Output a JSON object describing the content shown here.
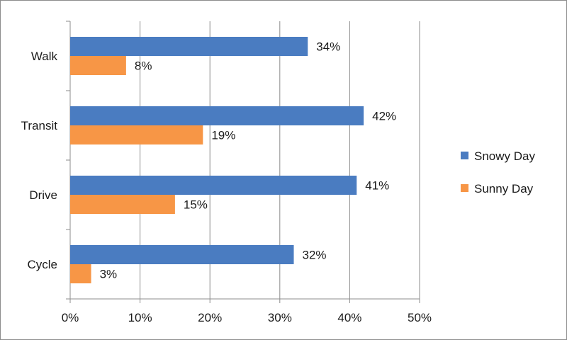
{
  "chart_data": {
    "type": "bar",
    "orientation": "horizontal",
    "categories": [
      "Walk",
      "Transit",
      "Drive",
      "Cycle"
    ],
    "series": [
      {
        "name": "Snowy Day",
        "color": "#4a7cc1",
        "values": [
          34,
          42,
          41,
          32
        ],
        "labels": [
          "34%",
          "42%",
          "41%",
          "32%"
        ]
      },
      {
        "name": "Sunny Day",
        "color": "#f79646",
        "values": [
          8,
          19,
          15,
          3
        ],
        "labels": [
          "8%",
          "19%",
          "15%",
          "3%"
        ]
      }
    ],
    "x_ticks": [
      "0%",
      "10%",
      "20%",
      "30%",
      "40%",
      "50%"
    ],
    "xlim": [
      0,
      50
    ],
    "unit": "%",
    "grid": "vertical",
    "legend_position": "right"
  }
}
